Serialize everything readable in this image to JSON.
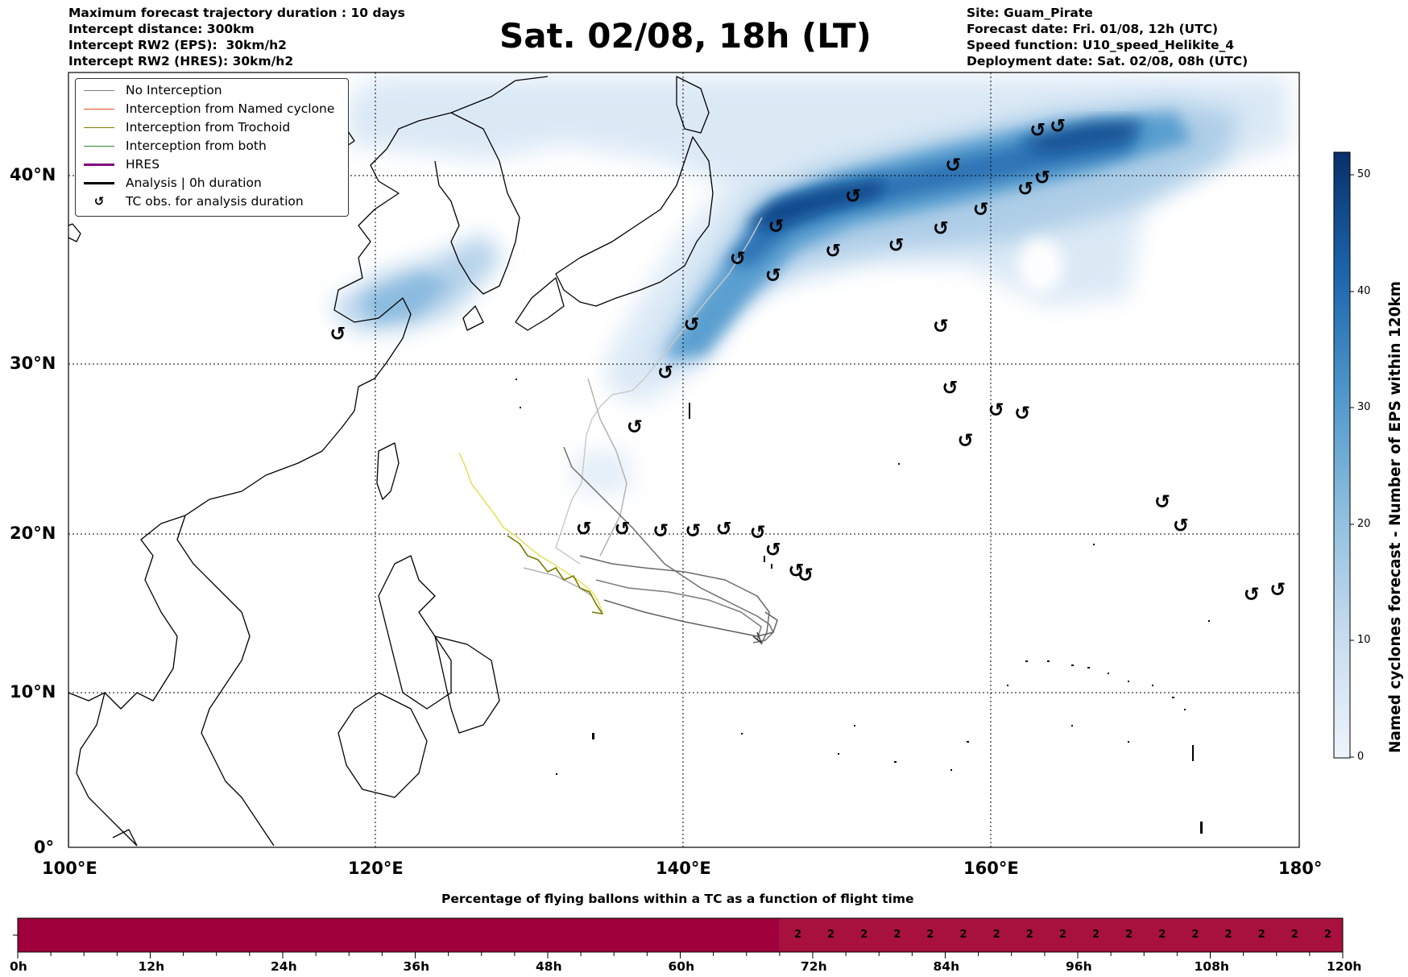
{
  "header": {
    "left": [
      "Maximum forecast trajectory duration : 10 days",
      "Intercept distance: 300km",
      "Intercept RW2 (EPS):  30km/h2",
      "Intercept RW2 (HRES): 30km/h2"
    ],
    "title": "Sat. 02/08, 18h (LT)",
    "right": [
      "Site: Guam_Pirate",
      "Forecast date: Fri. 01/08, 12h (UTC)",
      "Speed function: U10_speed_Helikite_4",
      "Deployment date: Sat. 02/08, 08h (UTC)"
    ]
  },
  "map": {
    "lat_labels": [
      "40°N",
      "30°N",
      "20°N",
      "10°N",
      "0°"
    ],
    "lon_labels": [
      "100°E",
      "120°E",
      "140°E",
      "160°E",
      "180°"
    ],
    "lon_range": [
      100,
      180
    ],
    "lat_range": [
      0,
      45
    ]
  },
  "legend": {
    "items": [
      {
        "label": "No Interception",
        "color": "#808080",
        "kind": "line"
      },
      {
        "label": "Interception from Named cyclone",
        "color": "#e8501e",
        "kind": "line"
      },
      {
        "label": "Interception from Trochoid",
        "color": "#808000",
        "kind": "line"
      },
      {
        "label": "Interception from both",
        "color": "#2e8b2e",
        "kind": "line"
      },
      {
        "label": "HRES",
        "color": "#800080",
        "kind": "thick"
      },
      {
        "label": "Analysis | 0h duration",
        "color": "#000000",
        "kind": "thick"
      },
      {
        "label": "TC obs. for analysis duration",
        "color": "#000000",
        "kind": "symbol"
      }
    ]
  },
  "colorbar": {
    "title": "Named cyclones forecast - Number of EPS within 120km",
    "ticks": [
      "0",
      "10",
      "20",
      "30",
      "40",
      "50"
    ],
    "min": 0,
    "max": 52
  },
  "timeline": {
    "title": "Percentage of flying ballons within a TC as a function of flight time",
    "ticks": [
      "0h",
      "12h",
      "24h",
      "36h",
      "48h",
      "60h",
      "72h",
      "84h",
      "96h",
      "108h",
      "120h"
    ],
    "counts": [
      "2",
      "2",
      "2",
      "2",
      "2",
      "2",
      "2",
      "2",
      "2",
      "2",
      "2",
      "2",
      "2",
      "2",
      "2",
      "2",
      "2"
    ],
    "colors": {
      "main": "#a0003c",
      "tail": "#a8103e"
    }
  },
  "tc_obs": [
    [
      117.5,
      31.6
    ],
    [
      143.5,
      35.6
    ],
    [
      145.8,
      34.7
    ],
    [
      146.0,
      37.3
    ],
    [
      140.5,
      32.1
    ],
    [
      138.8,
      29.5
    ],
    [
      136.8,
      26.3
    ],
    [
      151.0,
      38.9
    ],
    [
      149.7,
      36.0
    ],
    [
      153.8,
      36.3
    ],
    [
      156.7,
      37.2
    ],
    [
      157.5,
      40.5
    ],
    [
      159.3,
      38.2
    ],
    [
      162.2,
      39.3
    ],
    [
      163.3,
      39.9
    ],
    [
      163.0,
      42.2
    ],
    [
      164.3,
      42.4
    ],
    [
      156.7,
      32.0
    ],
    [
      157.3,
      28.6
    ],
    [
      160.3,
      27.3
    ],
    [
      162.0,
      27.1
    ],
    [
      158.3,
      25.5
    ],
    [
      133.5,
      20.3
    ],
    [
      136.0,
      20.3
    ],
    [
      138.5,
      20.2
    ],
    [
      140.6,
      20.2
    ],
    [
      142.6,
      20.3
    ],
    [
      144.8,
      20.1
    ],
    [
      145.8,
      19.0
    ],
    [
      147.3,
      17.7
    ],
    [
      147.9,
      17.4
    ],
    [
      171.1,
      21.9
    ],
    [
      172.3,
      20.5
    ],
    [
      176.9,
      16.2
    ],
    [
      178.6,
      16.5
    ]
  ]
}
